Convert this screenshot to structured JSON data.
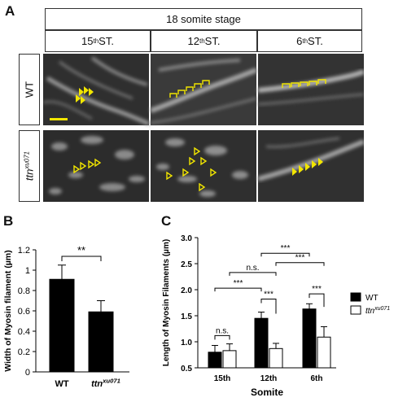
{
  "panelA": {
    "letter": "A",
    "stage": "18 somite stage",
    "columns": [
      "15th ST.",
      "12th ST.",
      "6th ST."
    ],
    "rows": [
      "WT",
      "ttnxu071"
    ],
    "marker_color": "#f2e600"
  },
  "panelB": {
    "letter": "B",
    "significance": "**",
    "chart_data": {
      "type": "bar",
      "categories": [
        "WT",
        "ttnxu071"
      ],
      "values": [
        0.91,
        0.59
      ],
      "errors": [
        0.14,
        0.11
      ],
      "ylabel": "Width of Myosin filament (µm)",
      "ylim": [
        0,
        1.2
      ],
      "yticks": [
        "0",
        "0.2",
        "0.4",
        "0.6",
        "0.8",
        "1",
        "1.2"
      ],
      "colors": [
        "#000000",
        "#000000"
      ]
    }
  },
  "panelC": {
    "letter": "C",
    "chart_data": {
      "type": "bar",
      "categories": [
        "15th",
        "12th",
        "6th"
      ],
      "series": [
        {
          "name": "WT",
          "values": [
            0.8,
            1.45,
            1.63
          ],
          "errors": [
            0.13,
            0.12,
            0.1
          ],
          "color": "#000000"
        },
        {
          "name": "ttnxu071",
          "values": [
            0.83,
            0.87,
            1.09
          ],
          "errors": [
            0.13,
            0.1,
            0.2
          ],
          "color": "#ffffff"
        }
      ],
      "xlabel": "Somite",
      "ylabel": "Length of Myosin Filaments (µm)",
      "ylim": [
        0.5,
        3.0
      ],
      "yticks": [
        "0.5",
        "1.0",
        "1.5",
        "2.0",
        "2.5",
        "3.0"
      ],
      "legend_position": "right",
      "significance": [
        "n.s.",
        "***",
        "n.s.",
        "***",
        "***",
        "***",
        "***"
      ]
    }
  }
}
